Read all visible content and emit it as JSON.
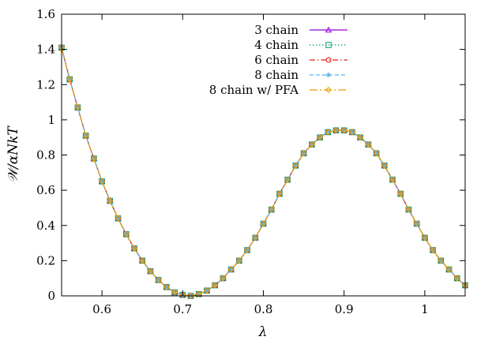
{
  "chart_data": {
    "type": "line",
    "xlabel": "λ",
    "ylabel": "𝒲/αNkT",
    "xlim": [
      0.55,
      1.05
    ],
    "ylim": [
      0,
      1.6
    ],
    "xticks": [
      "0.6",
      "0.7",
      "0.8",
      "0.9",
      "1"
    ],
    "yticks": [
      "0",
      "0.2",
      "0.4",
      "0.6",
      "0.8",
      "1",
      "1.2",
      "1.4",
      "1.6"
    ],
    "grid": false,
    "legend_position": "top-right",
    "colors": {
      "chain3": "#9400d3",
      "chain4": "#009e73",
      "chain6": "#e51e10",
      "chain8": "#56b4e9",
      "pfa": "#e69f00"
    },
    "series": [
      {
        "name": "3 chain",
        "marker": "triangle",
        "line": "solid",
        "x": [
          0.55,
          0.56,
          0.57,
          0.58,
          0.59,
          0.6,
          0.61,
          0.62,
          0.63,
          0.64,
          0.65,
          0.66,
          0.67,
          0.68,
          0.69,
          0.7,
          0.71,
          0.72,
          0.73,
          0.74,
          0.75,
          0.76,
          0.77,
          0.78,
          0.79,
          0.8,
          0.81,
          0.82,
          0.83,
          0.84,
          0.85,
          0.86,
          0.87,
          0.88,
          0.89,
          0.9,
          0.91,
          0.92,
          0.93,
          0.94,
          0.95,
          0.96,
          0.97,
          0.98,
          0.99,
          1.0,
          1.01,
          1.02,
          1.03,
          1.04,
          1.05
        ],
        "y": [
          1.41,
          1.23,
          1.07,
          0.91,
          0.78,
          0.65,
          0.54,
          0.44,
          0.35,
          0.27,
          0.2,
          0.14,
          0.09,
          0.05,
          0.02,
          0.005,
          0.0,
          0.01,
          0.03,
          0.06,
          0.1,
          0.15,
          0.2,
          0.26,
          0.33,
          0.41,
          0.49,
          0.58,
          0.66,
          0.74,
          0.81,
          0.86,
          0.9,
          0.93,
          0.94,
          0.94,
          0.93,
          0.9,
          0.86,
          0.81,
          0.74,
          0.66,
          0.58,
          0.49,
          0.41,
          0.33,
          0.26,
          0.2,
          0.15,
          0.1,
          0.06
        ]
      },
      {
        "name": "4 chain",
        "marker": "square",
        "line": "dotted",
        "x": [
          0.55,
          0.56,
          0.57,
          0.58,
          0.59,
          0.6,
          0.61,
          0.62,
          0.63,
          0.64,
          0.65,
          0.66,
          0.67,
          0.68,
          0.69,
          0.7,
          0.71,
          0.72,
          0.73,
          0.74,
          0.75,
          0.76,
          0.77,
          0.78,
          0.79,
          0.8,
          0.81,
          0.82,
          0.83,
          0.84,
          0.85,
          0.86,
          0.87,
          0.88,
          0.89,
          0.9,
          0.91,
          0.92,
          0.93,
          0.94,
          0.95,
          0.96,
          0.97,
          0.98,
          0.99,
          1.0,
          1.01,
          1.02,
          1.03,
          1.04,
          1.05
        ],
        "y": [
          1.41,
          1.23,
          1.07,
          0.91,
          0.78,
          0.65,
          0.54,
          0.44,
          0.35,
          0.27,
          0.2,
          0.14,
          0.09,
          0.05,
          0.02,
          0.005,
          0.0,
          0.01,
          0.03,
          0.06,
          0.1,
          0.15,
          0.2,
          0.26,
          0.33,
          0.41,
          0.49,
          0.58,
          0.66,
          0.74,
          0.81,
          0.86,
          0.9,
          0.93,
          0.94,
          0.94,
          0.93,
          0.9,
          0.86,
          0.81,
          0.74,
          0.66,
          0.58,
          0.49,
          0.41,
          0.33,
          0.26,
          0.2,
          0.15,
          0.1,
          0.06
        ]
      },
      {
        "name": "6 chain",
        "marker": "pentagon",
        "line": "dashdot",
        "x": [
          0.55,
          0.56,
          0.57,
          0.58,
          0.59,
          0.6,
          0.61,
          0.62,
          0.63,
          0.64,
          0.65,
          0.66,
          0.67,
          0.68,
          0.69,
          0.7,
          0.71,
          0.72,
          0.73,
          0.74,
          0.75,
          0.76,
          0.77,
          0.78,
          0.79,
          0.8,
          0.81,
          0.82,
          0.83,
          0.84,
          0.85,
          0.86,
          0.87,
          0.88,
          0.89,
          0.9,
          0.91,
          0.92,
          0.93,
          0.94,
          0.95,
          0.96,
          0.97,
          0.98,
          0.99,
          1.0,
          1.01,
          1.02,
          1.03,
          1.04,
          1.05
        ],
        "y": [
          1.41,
          1.23,
          1.07,
          0.91,
          0.78,
          0.65,
          0.54,
          0.44,
          0.35,
          0.27,
          0.2,
          0.14,
          0.09,
          0.05,
          0.02,
          0.005,
          0.0,
          0.01,
          0.03,
          0.06,
          0.1,
          0.15,
          0.2,
          0.26,
          0.33,
          0.41,
          0.49,
          0.58,
          0.66,
          0.74,
          0.81,
          0.86,
          0.9,
          0.93,
          0.94,
          0.94,
          0.93,
          0.9,
          0.86,
          0.81,
          0.74,
          0.66,
          0.58,
          0.49,
          0.41,
          0.33,
          0.26,
          0.2,
          0.15,
          0.1,
          0.06
        ]
      },
      {
        "name": "8 chain",
        "marker": "asterisk",
        "line": "dashed",
        "x": [
          0.55,
          0.56,
          0.57,
          0.58,
          0.59,
          0.6,
          0.61,
          0.62,
          0.63,
          0.64,
          0.65,
          0.66,
          0.67,
          0.68,
          0.69,
          0.7,
          0.71,
          0.72,
          0.73,
          0.74,
          0.75,
          0.76,
          0.77,
          0.78,
          0.79,
          0.8,
          0.81,
          0.82,
          0.83,
          0.84,
          0.85,
          0.86,
          0.87,
          0.88,
          0.89,
          0.9,
          0.91,
          0.92,
          0.93,
          0.94,
          0.95,
          0.96,
          0.97,
          0.98,
          0.99,
          1.0,
          1.01,
          1.02,
          1.03,
          1.04,
          1.05
        ],
        "y": [
          1.41,
          1.23,
          1.07,
          0.91,
          0.78,
          0.65,
          0.54,
          0.44,
          0.35,
          0.27,
          0.2,
          0.14,
          0.09,
          0.05,
          0.02,
          0.005,
          0.0,
          0.01,
          0.03,
          0.06,
          0.1,
          0.15,
          0.2,
          0.26,
          0.33,
          0.41,
          0.49,
          0.58,
          0.66,
          0.74,
          0.81,
          0.86,
          0.9,
          0.93,
          0.94,
          0.94,
          0.93,
          0.9,
          0.86,
          0.81,
          0.74,
          0.66,
          0.58,
          0.49,
          0.41,
          0.33,
          0.26,
          0.2,
          0.15,
          0.1,
          0.06
        ]
      },
      {
        "name": "8 chain w/ PFA",
        "marker": "diamond",
        "line": "longdashdot",
        "x": [
          0.55,
          0.56,
          0.57,
          0.58,
          0.59,
          0.6,
          0.61,
          0.62,
          0.63,
          0.64,
          0.65,
          0.66,
          0.67,
          0.68,
          0.69,
          0.7,
          0.71,
          0.72,
          0.73,
          0.74,
          0.75,
          0.76,
          0.77,
          0.78,
          0.79,
          0.8,
          0.81,
          0.82,
          0.83,
          0.84,
          0.85,
          0.86,
          0.87,
          0.88,
          0.89,
          0.9,
          0.91,
          0.92,
          0.93,
          0.94,
          0.95,
          0.96,
          0.97,
          0.98,
          0.99,
          1.0,
          1.01,
          1.02,
          1.03,
          1.04,
          1.05
        ],
        "y": [
          1.41,
          1.23,
          1.07,
          0.91,
          0.78,
          0.65,
          0.54,
          0.44,
          0.35,
          0.27,
          0.2,
          0.14,
          0.09,
          0.05,
          0.02,
          0.005,
          0.0,
          0.01,
          0.03,
          0.06,
          0.1,
          0.15,
          0.2,
          0.26,
          0.33,
          0.41,
          0.49,
          0.58,
          0.66,
          0.74,
          0.81,
          0.86,
          0.9,
          0.93,
          0.94,
          0.94,
          0.93,
          0.9,
          0.86,
          0.81,
          0.74,
          0.66,
          0.58,
          0.49,
          0.41,
          0.33,
          0.26,
          0.2,
          0.15,
          0.1,
          0.06
        ]
      }
    ]
  }
}
